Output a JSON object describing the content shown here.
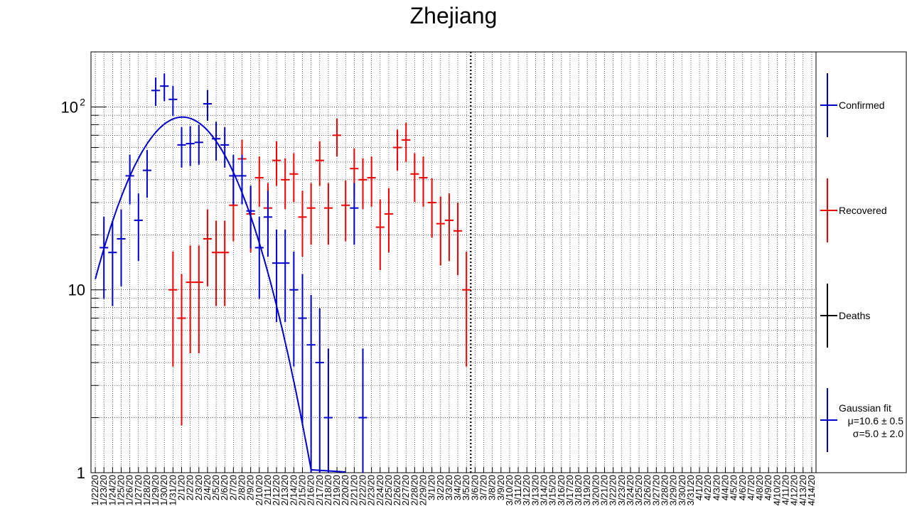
{
  "chart_data": {
    "type": "scatter",
    "title": "Zhejiang",
    "xlabel": "",
    "ylabel": "",
    "y_scale": "log",
    "ylim": [
      1,
      200
    ],
    "y_ticks": [
      {
        "value": 1,
        "label": "1"
      },
      {
        "value": 10,
        "label": "10"
      },
      {
        "value": 100,
        "label": "10",
        "exp": "2"
      }
    ],
    "grid": true,
    "legend_position": "right",
    "categories": [
      "1/22/20",
      "1/23/20",
      "1/24/20",
      "1/25/20",
      "1/26/20",
      "1/27/20",
      "1/28/20",
      "1/29/20",
      "1/30/20",
      "1/31/20",
      "2/1/20",
      "2/2/20",
      "2/3/20",
      "2/4/20",
      "2/5/20",
      "2/6/20",
      "2/7/20",
      "2/8/20",
      "2/9/20",
      "2/10/20",
      "2/11/20",
      "2/12/20",
      "2/13/20",
      "2/14/20",
      "2/15/20",
      "2/16/20",
      "2/17/20",
      "2/18/20",
      "2/19/20",
      "2/20/20",
      "2/21/20",
      "2/22/20",
      "2/23/20",
      "2/24/20",
      "2/25/20",
      "2/26/20",
      "2/27/20",
      "2/28/20",
      "2/29/20",
      "3/1/20",
      "3/2/20",
      "3/3/20",
      "3/4/20",
      "3/5/20",
      "3/6/20",
      "3/7/20",
      "3/8/20",
      "3/9/20",
      "3/10/20",
      "3/11/20",
      "3/12/20",
      "3/13/20",
      "3/14/20",
      "3/15/20",
      "3/16/20",
      "3/17/20",
      "3/18/20",
      "3/19/20",
      "3/20/20",
      "3/21/20",
      "3/22/20",
      "3/23/20",
      "3/24/20",
      "3/25/20",
      "3/26/20",
      "3/27/20",
      "3/28/20",
      "3/29/20",
      "3/30/20",
      "3/31/20",
      "4/1/20",
      "4/2/20",
      "4/3/20",
      "4/4/20",
      "4/5/20",
      "4/6/20",
      "4/7/20",
      "4/8/20",
      "4/9/20",
      "4/10/20",
      "4/11/20",
      "4/12/20",
      "4/13/20",
      "4/14/20"
    ],
    "series": [
      {
        "name": "Confirmed",
        "color": "#0000cc",
        "values": [
          null,
          17,
          16,
          19,
          42,
          24,
          45,
          123,
          130,
          110,
          62,
          63,
          64,
          104,
          67,
          62,
          42,
          42,
          27,
          17,
          25,
          14,
          14,
          10,
          7,
          5,
          4,
          2,
          null,
          null,
          28,
          2,
          null,
          null,
          null,
          null,
          null,
          null,
          null,
          null,
          null,
          null,
          null,
          null
        ]
      },
      {
        "name": "Recovered",
        "color": "#ee0000",
        "values": [
          null,
          null,
          null,
          null,
          null,
          null,
          null,
          null,
          null,
          10,
          7,
          11,
          11,
          19,
          16,
          16,
          29,
          52,
          26,
          41,
          28,
          51,
          40,
          43,
          25,
          28,
          51,
          28,
          70,
          29,
          46,
          40,
          41,
          22,
          26,
          60,
          66,
          43,
          41,
          30,
          23,
          24,
          21,
          10
        ]
      },
      {
        "name": "Deaths",
        "color": "#000000",
        "values": []
      }
    ],
    "fit": {
      "name": "Gaussian fit",
      "mu_label": "μ=10.6 ± 0.5",
      "sigma_label": "σ=5.0 ± 2.0",
      "mu": 10.6,
      "sigma": 5.0,
      "amplitude": 88,
      "color": "#0000cc"
    },
    "marker_line_date": "3/5/20"
  }
}
